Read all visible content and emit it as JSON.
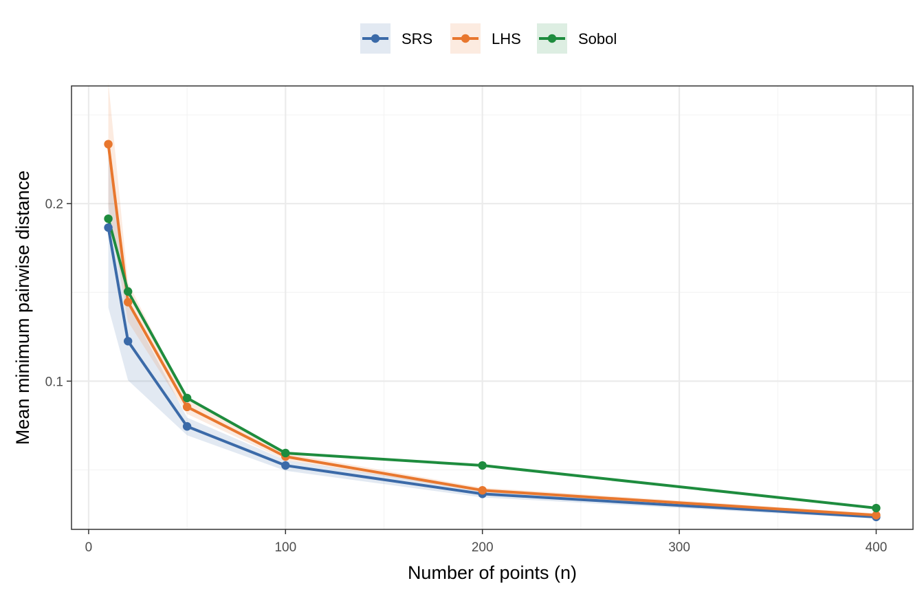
{
  "chart_data": {
    "type": "line",
    "xlabel": "Number of points (n)",
    "ylabel": "Mean minimum pairwise distance",
    "xlim": [
      -8.7,
      418.7
    ],
    "ylim": [
      0.0165,
      0.2663
    ],
    "x_ticks": [
      0,
      100,
      200,
      300,
      400
    ],
    "x_tick_labels": [
      "0",
      "100",
      "200",
      "300",
      "400"
    ],
    "y_ticks": [
      0.1,
      0.2
    ],
    "y_tick_labels": [
      "0.1",
      "0.2"
    ],
    "grid": true,
    "legend_position": "top",
    "x": [
      10,
      20,
      50,
      100,
      200,
      400
    ],
    "series": [
      {
        "name": "SRS",
        "color": "#3b6aa8",
        "values": [
          0.1865,
          0.1225,
          0.0745,
          0.0525,
          0.0365,
          0.0235
        ],
        "ribbon_low": [
          0.1415,
          0.1005,
          0.0695,
          0.0495,
          0.0345,
          0.0225
        ],
        "ribbon_high": [
          0.2265,
          0.1435,
          0.0795,
          0.0555,
          0.0385,
          0.0245
        ]
      },
      {
        "name": "LHS",
        "color": "#e8772e",
        "values": [
          0.2335,
          0.1445,
          0.0855,
          0.0575,
          0.0385,
          0.0245
        ],
        "ribbon_low": [
          0.1985,
          0.1335,
          0.0815,
          0.0555,
          0.0375,
          0.024
        ],
        "ribbon_high": [
          0.2685,
          0.1555,
          0.0895,
          0.0595,
          0.04,
          0.0255
        ]
      },
      {
        "name": "Sobol",
        "color": "#1e8c3e",
        "values": [
          0.1915,
          0.1505,
          0.0905,
          0.0595,
          0.0525,
          0.0285
        ],
        "ribbon_low": [
          0.1915,
          0.1505,
          0.0905,
          0.0595,
          0.0525,
          0.0285
        ],
        "ribbon_high": [
          0.1915,
          0.1505,
          0.0905,
          0.0595,
          0.0525,
          0.0285
        ]
      }
    ]
  }
}
